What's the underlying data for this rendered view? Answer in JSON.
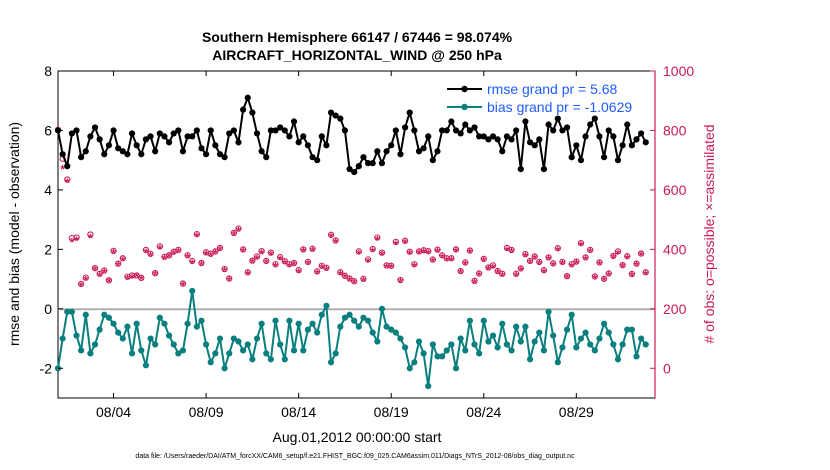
{
  "chart_data": {
    "type": "line",
    "title_line1": "Southern Hemisphere 66147 / 67446 = 98.074%",
    "title_line2": "AIRCRAFT_HORIZONTAL_WIND @ 250 hPa",
    "xlabel": "Aug.01,2012 00:00:00 start",
    "ylabel_left": "rmse and bias (model - observation)",
    "ylabel_right": "# of obs: o=possible; ×=assimilated",
    "footnote": "data file: /Users/raeder/DAI/ATM_forcXX/CAM6_setup/f.e21.FHIST_BGC.f09_025.CAM6assim.011/Diags_NTrS_2012-08/obs_diag_output.nc",
    "x_range_days": [
      0.0,
      32.25
    ],
    "xticks": [
      {
        "day": 3.0,
        "label": "08/04"
      },
      {
        "day": 8.0,
        "label": "08/09"
      },
      {
        "day": 13.0,
        "label": "08/14"
      },
      {
        "day": 18.0,
        "label": "08/19"
      },
      {
        "day": 23.0,
        "label": "08/24"
      },
      {
        "day": 28.0,
        "label": "08/29"
      }
    ],
    "ylim_left": [
      -3,
      8
    ],
    "yticks_left": [
      -2,
      0,
      2,
      4,
      6,
      8
    ],
    "ylim_right": [
      -100,
      1000
    ],
    "yticks_right": [
      0,
      200,
      400,
      600,
      800,
      1000
    ],
    "grid": false,
    "legend_position": "top-right",
    "legend": [
      {
        "label": "rmse grand pr = 5.68",
        "color": "#000000"
      },
      {
        "label": "bias grand pr = -1.0629",
        "color": "#0a7f7f"
      }
    ],
    "series": [
      {
        "name": "rmse",
        "axis": "left",
        "color": "#000000",
        "x": [
          0.0,
          0.25,
          0.5,
          0.75,
          1.0,
          1.25,
          1.5,
          1.75,
          2.0,
          2.25,
          2.5,
          2.75,
          3.0,
          3.25,
          3.5,
          3.75,
          4.0,
          4.25,
          4.5,
          4.75,
          5.0,
          5.25,
          5.5,
          5.75,
          6.0,
          6.25,
          6.5,
          6.75,
          7.0,
          7.25,
          7.5,
          7.75,
          8.0,
          8.25,
          8.5,
          8.75,
          9.0,
          9.25,
          9.5,
          9.75,
          10.0,
          10.25,
          10.5,
          10.75,
          11.0,
          11.25,
          11.5,
          11.75,
          12.0,
          12.25,
          12.5,
          12.75,
          13.0,
          13.25,
          13.5,
          13.75,
          14.0,
          14.25,
          14.5,
          14.75,
          15.0,
          15.25,
          15.5,
          15.75,
          16.0,
          16.25,
          16.5,
          16.75,
          17.0,
          17.25,
          17.5,
          17.75,
          18.0,
          18.25,
          18.5,
          18.75,
          19.0,
          19.25,
          19.5,
          19.75,
          20.0,
          20.25,
          20.5,
          20.75,
          21.0,
          21.25,
          21.5,
          21.75,
          22.0,
          22.25,
          22.5,
          22.75,
          23.0,
          23.25,
          23.5,
          23.75,
          24.0,
          24.25,
          24.5,
          24.75,
          25.0,
          25.25,
          25.5,
          25.75,
          26.0,
          26.25,
          26.5,
          26.75,
          27.0,
          27.25,
          27.5,
          27.75,
          28.0,
          28.25,
          28.5,
          28.75,
          29.0,
          29.25,
          29.5,
          29.75,
          30.0,
          30.25,
          30.5,
          30.75,
          31.0,
          31.25,
          31.5,
          31.75
        ],
        "values": [
          6.0,
          5.2,
          4.8,
          5.9,
          6.0,
          5.1,
          5.3,
          5.8,
          6.1,
          5.7,
          5.2,
          5.5,
          6.0,
          5.4,
          5.3,
          5.2,
          5.9,
          5.5,
          5.2,
          5.7,
          5.8,
          5.3,
          5.9,
          5.8,
          5.6,
          5.9,
          6.0,
          5.3,
          5.8,
          5.8,
          6.0,
          5.4,
          5.2,
          6.0,
          5.5,
          5.2,
          5.1,
          5.9,
          6.0,
          5.6,
          6.7,
          7.1,
          6.6,
          5.9,
          5.3,
          5.1,
          6.0,
          6.0,
          6.1,
          6.0,
          5.8,
          6.3,
          5.6,
          5.8,
          5.5,
          5.1,
          5.0,
          5.8,
          5.5,
          6.6,
          6.5,
          6.4,
          6.0,
          4.7,
          4.6,
          4.8,
          5.1,
          4.9,
          4.9,
          5.3,
          4.9,
          5.3,
          5.5,
          6.0,
          5.2,
          6.1,
          6.6,
          6.0,
          5.3,
          5.4,
          5.8,
          5.0,
          5.3,
          6.0,
          6.0,
          6.3,
          6.0,
          5.9,
          6.2,
          6.0,
          6.1,
          5.8,
          5.8,
          5.7,
          5.8,
          5.7,
          5.3,
          5.8,
          5.7,
          6.0,
          4.7,
          6.3,
          5.6,
          5.5,
          5.7,
          4.7,
          6.2,
          6.0,
          6.4,
          6.0,
          6.1,
          5.1,
          5.5,
          5.0,
          5.8,
          6.2,
          6.4,
          5.8,
          5.1,
          6.0,
          5.8,
          5.0,
          5.5,
          6.2,
          5.5,
          5.7,
          5.9,
          5.6
        ]
      },
      {
        "name": "bias",
        "axis": "left",
        "color": "#0a7f7f",
        "x": [
          0.0,
          0.25,
          0.5,
          0.75,
          1.0,
          1.25,
          1.5,
          1.75,
          2.0,
          2.25,
          2.5,
          2.75,
          3.0,
          3.25,
          3.5,
          3.75,
          4.0,
          4.25,
          4.5,
          4.75,
          5.0,
          5.25,
          5.5,
          5.75,
          6.0,
          6.25,
          6.5,
          6.75,
          7.0,
          7.25,
          7.5,
          7.75,
          8.0,
          8.25,
          8.5,
          8.75,
          9.0,
          9.25,
          9.5,
          9.75,
          10.0,
          10.25,
          10.5,
          10.75,
          11.0,
          11.25,
          11.5,
          11.75,
          12.0,
          12.25,
          12.5,
          12.75,
          13.0,
          13.25,
          13.5,
          13.75,
          14.0,
          14.25,
          14.5,
          14.75,
          15.0,
          15.25,
          15.5,
          15.75,
          16.0,
          16.25,
          16.5,
          16.75,
          17.0,
          17.25,
          17.5,
          17.75,
          18.0,
          18.25,
          18.5,
          18.75,
          19.0,
          19.25,
          19.5,
          19.75,
          20.0,
          20.25,
          20.5,
          20.75,
          21.0,
          21.25,
          21.5,
          21.75,
          22.0,
          22.25,
          22.5,
          22.75,
          23.0,
          23.25,
          23.5,
          23.75,
          24.0,
          24.25,
          24.5,
          24.75,
          25.0,
          25.25,
          25.5,
          25.75,
          26.0,
          26.25,
          26.5,
          26.75,
          27.0,
          27.25,
          27.5,
          27.75,
          28.0,
          28.25,
          28.5,
          28.75,
          29.0,
          29.25,
          29.5,
          29.75,
          30.0,
          30.25,
          30.5,
          30.75,
          31.0,
          31.25,
          31.5,
          31.75
        ],
        "values": [
          -2.0,
          -1.0,
          -0.1,
          -0.1,
          -0.9,
          -1.4,
          -0.2,
          -1.5,
          -1.2,
          -0.7,
          -0.2,
          -0.3,
          -0.5,
          -0.8,
          -1.0,
          -0.6,
          -1.5,
          -0.5,
          -1.4,
          -1.9,
          -1.0,
          -1.2,
          -0.3,
          -0.5,
          -0.9,
          -1.2,
          -1.5,
          -1.4,
          -0.5,
          0.6,
          -0.6,
          -0.4,
          -1.2,
          -1.8,
          -1.5,
          -1.0,
          -2.0,
          -1.5,
          -1.0,
          -1.1,
          -1.4,
          -1.2,
          -1.7,
          -1.0,
          -0.5,
          -1.5,
          -1.7,
          -0.4,
          -1.2,
          -1.7,
          -0.4,
          -1.4,
          -0.5,
          -1.4,
          -0.7,
          -0.5,
          -0.8,
          -0.2,
          0.1,
          -1.8,
          -1.5,
          -0.6,
          -0.3,
          -0.2,
          -0.4,
          -0.6,
          -0.3,
          -0.4,
          -0.8,
          -1.1,
          0.0,
          -0.6,
          -0.7,
          -0.8,
          -1.0,
          -1.3,
          -2.0,
          -1.8,
          -1.1,
          -1.5,
          -2.6,
          -1.2,
          -1.6,
          -1.6,
          -1.4,
          -1.2,
          -2.0,
          -1.0,
          -1.4,
          -0.4,
          -1.2,
          -1.5,
          -0.4,
          -1.1,
          -0.9,
          -1.3,
          -0.5,
          -1.2,
          -1.4,
          -0.6,
          -1.1,
          -0.6,
          -1.7,
          -1.1,
          -0.8,
          -1.4,
          -0.1,
          -0.9,
          -1.8,
          -1.3,
          -0.7,
          -0.2,
          -1.3,
          -1.0,
          -0.8,
          -1.2,
          -1.4,
          -1.0,
          -0.5,
          -0.8,
          -1.2,
          -1.7,
          -1.2,
          -0.7,
          -0.7,
          -1.6,
          -1.0,
          -1.2
        ]
      },
      {
        "name": "possible",
        "axis": "right",
        "color": "#cc1a55",
        "marker": "o",
        "x": [
          0.0,
          0.25,
          0.5,
          0.75,
          1.0,
          1.25,
          1.5,
          1.75,
          2.0,
          2.25,
          2.5,
          2.75,
          3.0,
          3.25,
          3.5,
          3.75,
          4.0,
          4.25,
          4.5,
          4.75,
          5.0,
          5.25,
          5.5,
          5.75,
          6.0,
          6.25,
          6.5,
          6.75,
          7.0,
          7.25,
          7.5,
          7.75,
          8.0,
          8.25,
          8.5,
          8.75,
          9.0,
          9.25,
          9.5,
          9.75,
          10.0,
          10.25,
          10.5,
          10.75,
          11.0,
          11.25,
          11.5,
          11.75,
          12.0,
          12.25,
          12.5,
          12.75,
          13.0,
          13.25,
          13.5,
          13.75,
          14.0,
          14.25,
          14.5,
          14.75,
          15.0,
          15.25,
          15.5,
          15.75,
          16.0,
          16.25,
          16.5,
          16.75,
          17.0,
          17.25,
          17.5,
          17.75,
          18.0,
          18.25,
          18.5,
          18.75,
          19.0,
          19.25,
          19.5,
          19.75,
          20.0,
          20.25,
          20.5,
          20.75,
          21.0,
          21.25,
          21.5,
          21.75,
          22.0,
          22.25,
          22.5,
          22.75,
          23.0,
          23.25,
          23.5,
          23.75,
          24.0,
          24.25,
          24.5,
          24.75,
          25.0,
          25.25,
          25.5,
          25.75,
          26.0,
          26.25,
          26.5,
          26.75,
          27.0,
          27.25,
          27.5,
          27.75,
          28.0,
          28.25,
          28.5,
          28.75,
          29.0,
          29.25,
          29.5,
          29.75,
          30.0,
          30.25,
          30.5,
          30.75,
          31.0,
          31.25,
          31.5,
          31.75
        ],
        "values": [
          802,
          705,
          635,
          438,
          440,
          284,
          305,
          450,
          337,
          318,
          329,
          296,
          395,
          352,
          370,
          308,
          312,
          312,
          304,
          398,
          385,
          320,
          410,
          375,
          380,
          392,
          398,
          285,
          380,
          361,
          451,
          354,
          390,
          385,
          393,
          405,
          334,
          302,
          455,
          470,
          400,
          323,
          362,
          376,
          394,
          361,
          389,
          350,
          374,
          360,
          350,
          354,
          330,
          400,
          358,
          402,
          326,
          345,
          338,
          449,
          430,
          323,
          311,
          302,
          293,
          393,
          301,
          366,
          401,
          440,
          389,
          346,
          345,
          425,
          297,
          429,
          392,
          350,
          393,
          397,
          394,
          366,
          399,
          380,
          370,
          370,
          400,
          327,
          356,
          396,
          294,
          319,
          368,
          339,
          346,
          327,
          318,
          405,
          398,
          318,
          336,
          384,
          361,
          376,
          358,
          330,
          373,
          353,
          404,
          358,
          310,
          350,
          359,
          421,
          373,
          398,
          309,
          356,
          301,
          319,
          378,
          393,
          347,
          377,
          317,
          352,
          386,
          323
        ]
      },
      {
        "name": "assimilated",
        "axis": "right",
        "color": "#cc1a55",
        "marker": "*",
        "x": [
          0.0,
          0.25,
          0.5,
          0.75,
          1.0,
          1.25,
          1.5,
          1.75,
          2.0,
          2.25,
          2.5,
          2.75,
          3.0,
          3.25,
          3.5,
          3.75,
          4.0,
          4.25,
          4.5,
          4.75,
          5.0,
          5.25,
          5.5,
          5.75,
          6.0,
          6.25,
          6.5,
          6.75,
          7.0,
          7.25,
          7.5,
          7.75,
          8.0,
          8.25,
          8.5,
          8.75,
          9.0,
          9.25,
          9.5,
          9.75,
          10.0,
          10.25,
          10.5,
          10.75,
          11.0,
          11.25,
          11.5,
          11.75,
          12.0,
          12.25,
          12.5,
          12.75,
          13.0,
          13.25,
          13.5,
          13.75,
          14.0,
          14.25,
          14.5,
          14.75,
          15.0,
          15.25,
          15.5,
          15.75,
          16.0,
          16.25,
          16.5,
          16.75,
          17.0,
          17.25,
          17.5,
          17.75,
          18.0,
          18.25,
          18.5,
          18.75,
          19.0,
          19.25,
          19.5,
          19.75,
          20.0,
          20.25,
          20.5,
          20.75,
          21.0,
          21.25,
          21.5,
          21.75,
          22.0,
          22.25,
          22.5,
          22.75,
          23.0,
          23.25,
          23.5,
          23.75,
          24.0,
          24.25,
          24.5,
          24.75,
          25.0,
          25.25,
          25.5,
          25.75,
          26.0,
          26.25,
          26.5,
          26.75,
          27.0,
          27.25,
          27.5,
          27.75,
          28.0,
          28.25,
          28.5,
          28.75,
          29.0,
          29.25,
          29.5,
          29.75,
          30.0,
          30.25,
          30.5,
          30.75,
          31.0,
          31.25,
          31.5,
          31.75
        ],
        "values": [
          795,
          670,
          625,
          425,
          430,
          277,
          297,
          438,
          331,
          310,
          322,
          290,
          387,
          346,
          363,
          300,
          304,
          307,
          298,
          389,
          377,
          313,
          402,
          367,
          374,
          385,
          391,
          279,
          372,
          353,
          444,
          347,
          383,
          377,
          386,
          398,
          327,
          296,
          448,
          462,
          392,
          316,
          355,
          368,
          386,
          354,
          381,
          343,
          366,
          353,
          343,
          347,
          323,
          393,
          351,
          395,
          319,
          338,
          330,
          441,
          423,
          315,
          305,
          296,
          287,
          385,
          294,
          358,
          393,
          432,
          381,
          339,
          339,
          417,
          291,
          421,
          384,
          343,
          386,
          390,
          386,
          359,
          391,
          373,
          363,
          363,
          392,
          321,
          349,
          389,
          287,
          312,
          361,
          332,
          338,
          320,
          311,
          397,
          391,
          311,
          329,
          376,
          354,
          369,
          351,
          323,
          366,
          346,
          396,
          351,
          303,
          343,
          352,
          413,
          366,
          391,
          302,
          349,
          295,
          312,
          371,
          385,
          340,
          370,
          311,
          345,
          379,
          316
        ]
      }
    ]
  }
}
